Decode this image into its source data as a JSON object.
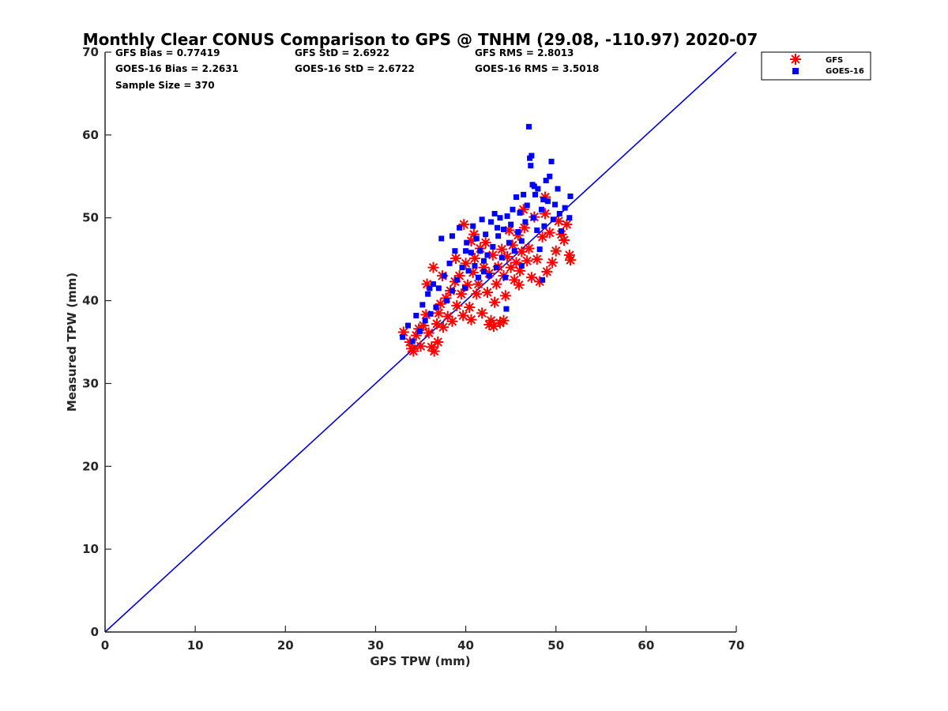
{
  "chart_data": {
    "type": "scatter",
    "title": "Monthly Clear CONUS Comparison to GPS @ TNHM (29.08, -110.97) 2020-07",
    "xlabel": "GPS TPW (mm)",
    "ylabel": "Measured TPW (mm)",
    "xlim": [
      0,
      70
    ],
    "ylim": [
      0,
      70
    ],
    "xticks": [
      0,
      10,
      20,
      30,
      40,
      50,
      60,
      70
    ],
    "yticks": [
      0,
      10,
      20,
      30,
      40,
      50,
      60,
      70
    ],
    "grid": false,
    "legend_position": "outside-top-right",
    "stats": [
      [
        "GFS Bias = 0.77419",
        "GFS StD = 2.6922",
        "GFS RMS = 2.8013"
      ],
      [
        "GOES-16 Bias = 2.2631",
        "GOES-16 StD = 2.6722",
        "GOES-16 RMS = 3.5018"
      ],
      [
        "Sample Size = 370"
      ]
    ],
    "reference_line": {
      "x": [
        0,
        70
      ],
      "y": [
        0,
        70
      ],
      "color": "#0000dd"
    },
    "series": [
      {
        "name": "GFS",
        "marker": "asterisk",
        "color": "#ff0000",
        "points": [
          [
            33.1,
            36.2
          ],
          [
            33.8,
            35.0
          ],
          [
            34.2,
            33.9
          ],
          [
            34.5,
            35.8
          ],
          [
            34.8,
            36.6
          ],
          [
            35.0,
            34.5
          ],
          [
            35.3,
            37.0
          ],
          [
            35.6,
            38.3
          ],
          [
            35.9,
            36.1
          ],
          [
            36.2,
            34.4
          ],
          [
            36.5,
            33.9
          ],
          [
            36.8,
            37.2
          ],
          [
            37.0,
            38.5
          ],
          [
            37.2,
            39.6
          ],
          [
            37.5,
            36.8
          ],
          [
            37.8,
            40.3
          ],
          [
            38.0,
            38.1
          ],
          [
            38.3,
            41.2
          ],
          [
            38.5,
            37.5
          ],
          [
            38.8,
            42.3
          ],
          [
            39.0,
            39.4
          ],
          [
            39.3,
            43.0
          ],
          [
            39.5,
            40.8
          ],
          [
            39.7,
            38.2
          ],
          [
            40.0,
            44.5
          ],
          [
            40.2,
            41.9
          ],
          [
            40.4,
            39.2
          ],
          [
            40.6,
            47.2
          ],
          [
            40.8,
            43.4
          ],
          [
            41.0,
            45.1
          ],
          [
            41.2,
            40.8
          ],
          [
            41.4,
            42.0
          ],
          [
            41.6,
            46.3
          ],
          [
            41.8,
            38.5
          ],
          [
            42.0,
            44.0
          ],
          [
            42.2,
            47.0
          ],
          [
            42.4,
            41.0
          ],
          [
            42.6,
            43.3
          ],
          [
            42.8,
            37.6
          ],
          [
            43.0,
            45.5
          ],
          [
            43.2,
            39.8
          ],
          [
            43.4,
            42.0
          ],
          [
            43.6,
            44.1
          ],
          [
            43.8,
            37.3
          ],
          [
            44.0,
            46.2
          ],
          [
            44.2,
            43.0
          ],
          [
            44.4,
            40.6
          ],
          [
            44.6,
            45.3
          ],
          [
            44.8,
            48.5
          ],
          [
            45.0,
            44.0
          ],
          [
            45.2,
            46.7
          ],
          [
            45.4,
            42.5
          ],
          [
            45.6,
            44.6
          ],
          [
            45.8,
            47.9
          ],
          [
            46.0,
            43.6
          ],
          [
            46.2,
            45.9
          ],
          [
            46.5,
            48.8
          ],
          [
            46.8,
            44.8
          ],
          [
            47.0,
            46.3
          ],
          [
            47.3,
            42.8
          ],
          [
            47.6,
            50.1
          ],
          [
            47.9,
            45.0
          ],
          [
            48.2,
            42.3
          ],
          [
            48.5,
            47.7
          ],
          [
            48.8,
            50.5
          ],
          [
            49.0,
            43.5
          ],
          [
            49.3,
            48.2
          ],
          [
            49.6,
            44.6
          ],
          [
            50.0,
            46.0
          ],
          [
            50.3,
            49.6
          ],
          [
            50.6,
            48.0
          ],
          [
            50.9,
            47.3
          ],
          [
            51.2,
            49.2
          ],
          [
            51.5,
            45.5
          ],
          [
            51.6,
            44.9
          ],
          [
            35.7,
            42.0
          ],
          [
            36.4,
            44.0
          ],
          [
            37.4,
            43.0
          ],
          [
            38.9,
            45.1
          ],
          [
            39.8,
            49.2
          ],
          [
            40.9,
            48.0
          ],
          [
            46.4,
            51.0
          ],
          [
            48.8,
            52.5
          ],
          [
            43.1,
            36.9
          ],
          [
            44.2,
            37.6
          ],
          [
            45.9,
            41.9
          ],
          [
            34.0,
            34.2
          ],
          [
            36.9,
            35.0
          ],
          [
            40.6,
            37.7
          ],
          [
            42.6,
            37.1
          ]
        ]
      },
      {
        "name": "GOES-16",
        "marker": "square",
        "color": "#0000ff",
        "points": [
          [
            33.0,
            35.6
          ],
          [
            33.6,
            37.0
          ],
          [
            34.1,
            35.1
          ],
          [
            34.5,
            38.2
          ],
          [
            34.9,
            36.3
          ],
          [
            35.2,
            39.5
          ],
          [
            35.5,
            37.6
          ],
          [
            35.8,
            40.8
          ],
          [
            36.1,
            38.4
          ],
          [
            36.4,
            42.0
          ],
          [
            36.7,
            39.2
          ],
          [
            37.0,
            41.5
          ],
          [
            37.3,
            47.5
          ],
          [
            37.6,
            43.0
          ],
          [
            37.9,
            40.0
          ],
          [
            38.2,
            44.5
          ],
          [
            38.5,
            41.2
          ],
          [
            38.8,
            46.0
          ],
          [
            39.0,
            42.5
          ],
          [
            39.3,
            48.8
          ],
          [
            39.6,
            44.0
          ],
          [
            39.9,
            41.5
          ],
          [
            40.1,
            47.0
          ],
          [
            40.3,
            43.6
          ],
          [
            40.6,
            45.8
          ],
          [
            40.8,
            49.0
          ],
          [
            41.0,
            44.2
          ],
          [
            41.2,
            47.5
          ],
          [
            41.4,
            42.8
          ],
          [
            41.6,
            46.0
          ],
          [
            41.8,
            49.8
          ],
          [
            42.0,
            44.8
          ],
          [
            42.2,
            48.0
          ],
          [
            42.4,
            45.5
          ],
          [
            42.6,
            43.0
          ],
          [
            42.8,
            49.5
          ],
          [
            43.0,
            46.5
          ],
          [
            43.2,
            50.5
          ],
          [
            43.4,
            44.0
          ],
          [
            43.6,
            47.8
          ],
          [
            43.8,
            50.0
          ],
          [
            44.0,
            45.2
          ],
          [
            44.2,
            48.6
          ],
          [
            44.4,
            42.8
          ],
          [
            44.6,
            50.2
          ],
          [
            44.8,
            47.0
          ],
          [
            45.0,
            49.2
          ],
          [
            45.2,
            51.0
          ],
          [
            45.4,
            46.0
          ],
          [
            45.6,
            52.5
          ],
          [
            45.8,
            48.3
          ],
          [
            46.0,
            50.6
          ],
          [
            46.2,
            47.2
          ],
          [
            46.4,
            52.8
          ],
          [
            46.6,
            49.5
          ],
          [
            46.8,
            51.5
          ],
          [
            47.0,
            61.0
          ],
          [
            47.1,
            57.2
          ],
          [
            47.2,
            56.3
          ],
          [
            47.3,
            57.5
          ],
          [
            47.4,
            54.0
          ],
          [
            47.5,
            50.0
          ],
          [
            47.7,
            52.8
          ],
          [
            47.9,
            48.5
          ],
          [
            48.0,
            53.5
          ],
          [
            48.2,
            46.2
          ],
          [
            48.4,
            51.0
          ],
          [
            48.5,
            42.5
          ],
          [
            48.7,
            49.0
          ],
          [
            48.9,
            54.5
          ],
          [
            49.1,
            52.0
          ],
          [
            49.3,
            55.0
          ],
          [
            49.5,
            56.8
          ],
          [
            49.7,
            49.8
          ],
          [
            49.9,
            51.6
          ],
          [
            50.2,
            53.5
          ],
          [
            50.4,
            50.5
          ],
          [
            50.6,
            48.4
          ],
          [
            51.0,
            51.2
          ],
          [
            51.6,
            52.6
          ],
          [
            51.5,
            50.0
          ],
          [
            47.6,
            53.8
          ],
          [
            48.6,
            52.2
          ],
          [
            40.0,
            46.0
          ],
          [
            38.5,
            47.8
          ],
          [
            36.0,
            41.5
          ],
          [
            42.0,
            43.5
          ],
          [
            44.5,
            39.0
          ],
          [
            46.2,
            44.2
          ],
          [
            43.5,
            48.8
          ]
        ]
      }
    ]
  }
}
